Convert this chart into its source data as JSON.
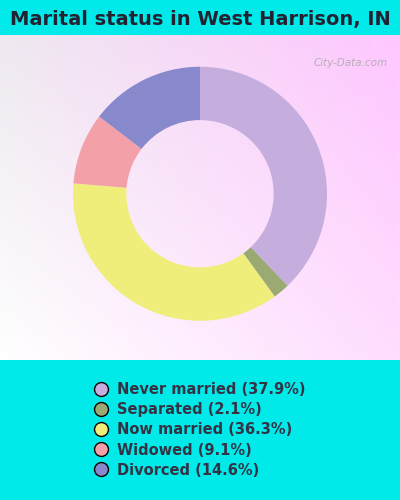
{
  "title": "Marital status in West Harrison, IN",
  "categories": [
    "Never married",
    "Separated",
    "Now married",
    "Widowed",
    "Divorced"
  ],
  "values": [
    37.9,
    2.1,
    36.3,
    9.1,
    14.6
  ],
  "colors": [
    "#c5aedd",
    "#9aaa72",
    "#f0ee7a",
    "#f4a0a8",
    "#8888cc"
  ],
  "legend_labels": [
    "Never married (37.9%)",
    "Separated (2.1%)",
    "Now married (36.3%)",
    "Widowed (9.1%)",
    "Divorced (14.6%)"
  ],
  "bg_cyan": "#00eaea",
  "title_fontsize": 14,
  "legend_fontsize": 10.5,
  "watermark": "City-Data.com",
  "title_color": "#222233"
}
